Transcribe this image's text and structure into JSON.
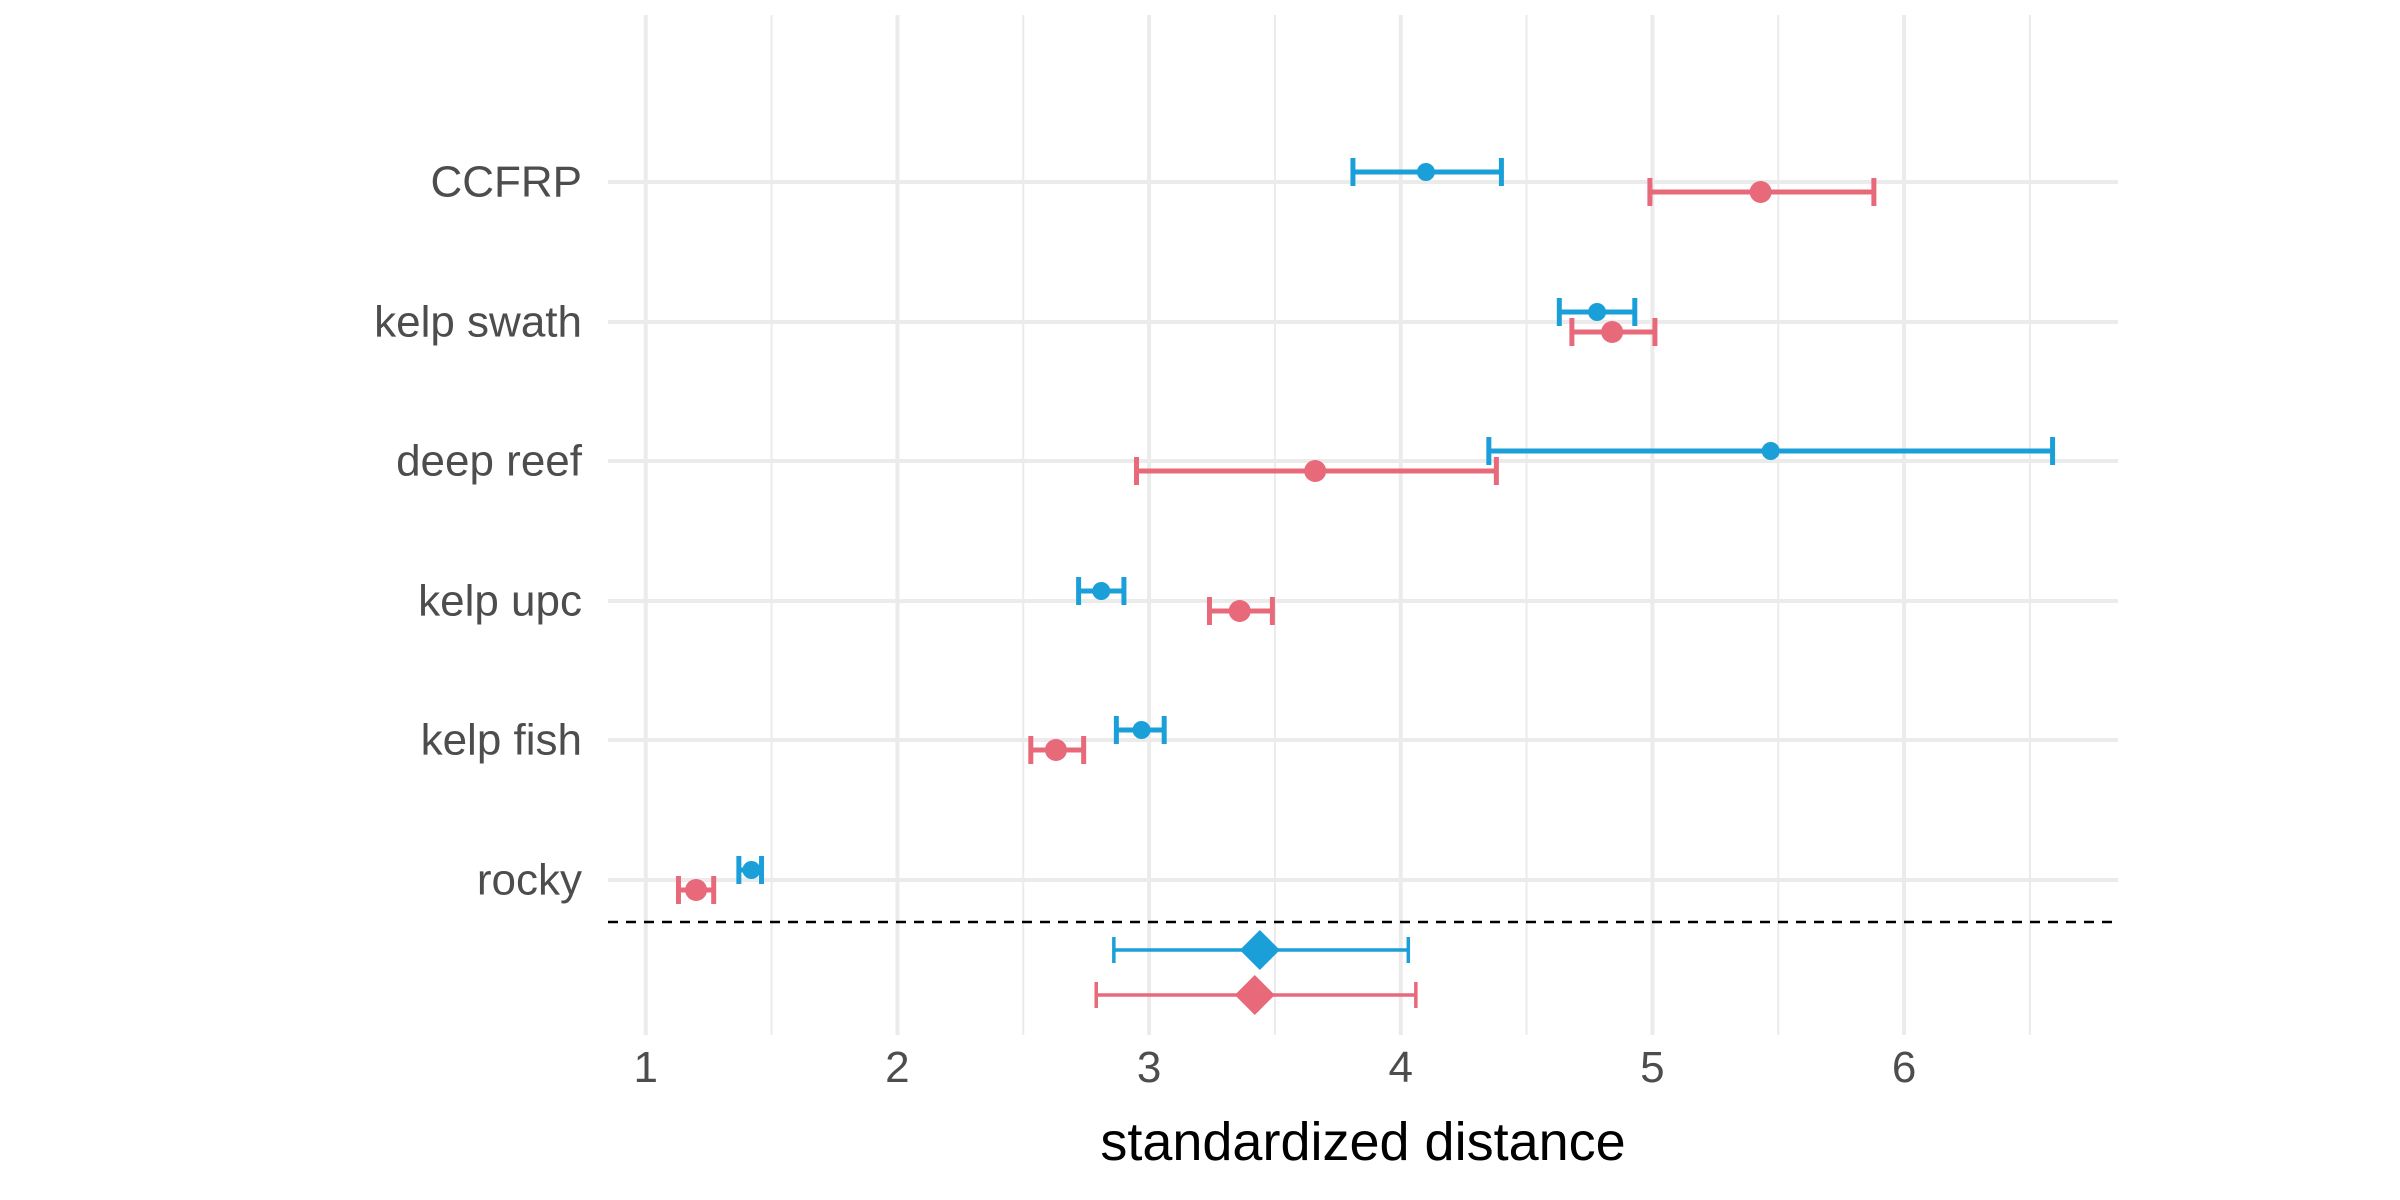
{
  "chart_data": {
    "type": "forest",
    "xlabel": "standardized distance",
    "ylabel": "",
    "title": "",
    "xlim": [
      0.85,
      6.85
    ],
    "x_ticks": [
      1,
      2,
      3,
      4,
      5,
      6
    ],
    "x_tick_labels": [
      "1",
      "2",
      "3",
      "4",
      "5",
      "6"
    ],
    "grid": true,
    "legend": "none",
    "categories": [
      "CCFRP",
      "kelp swath",
      "deep reef",
      "kelp upc",
      "kelp fish",
      "rocky"
    ],
    "series": [
      {
        "color": "#1a9fd9",
        "estimates": [
          {
            "category": "CCFRP",
            "x": 4.1,
            "lower": 3.81,
            "upper": 4.4
          },
          {
            "category": "kelp swath",
            "x": 4.78,
            "lower": 4.63,
            "upper": 4.93
          },
          {
            "category": "deep reef",
            "x": 5.47,
            "lower": 4.35,
            "upper": 6.59
          },
          {
            "category": "kelp upc",
            "x": 2.81,
            "lower": 2.72,
            "upper": 2.9
          },
          {
            "category": "kelp fish",
            "x": 2.97,
            "lower": 2.87,
            "upper": 3.06
          },
          {
            "category": "rocky",
            "x": 1.42,
            "lower": 1.37,
            "upper": 1.46
          }
        ],
        "summary": {
          "x": 3.44,
          "lower": 2.86,
          "upper": 4.03
        }
      },
      {
        "color": "#e8697a",
        "estimates": [
          {
            "category": "CCFRP",
            "x": 5.43,
            "lower": 4.99,
            "upper": 5.88
          },
          {
            "category": "kelp swath",
            "x": 4.84,
            "lower": 4.68,
            "upper": 5.01
          },
          {
            "category": "deep reef",
            "x": 3.66,
            "lower": 2.95,
            "upper": 4.38
          },
          {
            "category": "kelp upc",
            "x": 3.36,
            "lower": 3.24,
            "upper": 3.49
          },
          {
            "category": "kelp fish",
            "x": 2.63,
            "lower": 2.53,
            "upper": 2.74
          },
          {
            "category": "rocky",
            "x": 1.2,
            "lower": 1.13,
            "upper": 1.27
          }
        ],
        "summary": {
          "x": 3.42,
          "lower": 2.79,
          "upper": 4.06
        }
      }
    ]
  }
}
